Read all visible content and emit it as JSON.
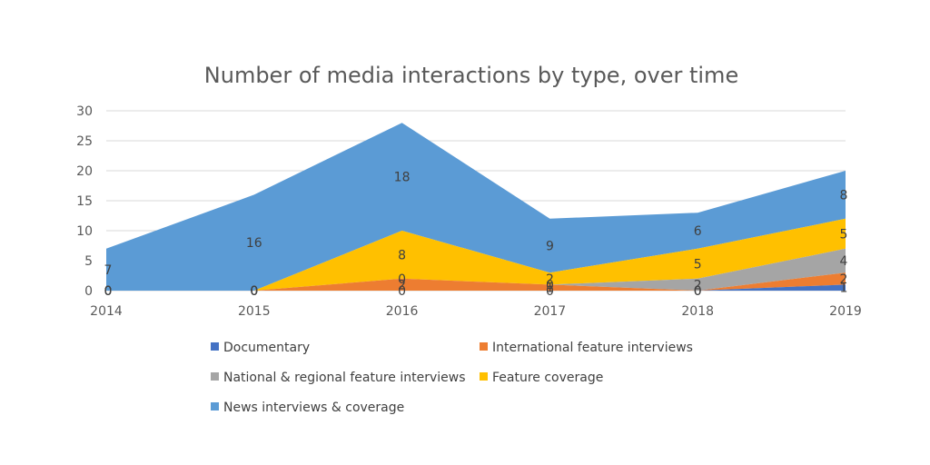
{
  "chart_data": {
    "type": "area",
    "stacked": true,
    "title": "Number of media interactions by type, over time",
    "xlabel": "",
    "ylabel": "",
    "x": [
      "2014",
      "2015",
      "2016",
      "2017",
      "2018",
      "2019"
    ],
    "ylim": [
      0,
      30
    ],
    "yticks": [
      "0",
      "5",
      "10",
      "15",
      "20",
      "25",
      "30"
    ],
    "grid": true,
    "legend_position": "bottom",
    "series": [
      {
        "name": "Documentary",
        "color": "#4472c4",
        "values": [
          0,
          0,
          0,
          0,
          0,
          1
        ]
      },
      {
        "name": "International feature interviews",
        "color": "#ed7d31",
        "values": [
          0,
          0,
          2,
          1,
          0,
          2
        ]
      },
      {
        "name": "National & regional feature interviews",
        "color": "#a5a5a5",
        "values": [
          0,
          0,
          0,
          0,
          2,
          4
        ]
      },
      {
        "name": "Feature coverage",
        "color": "#ffc000",
        "values": [
          0,
          0,
          8,
          2,
          5,
          5
        ]
      },
      {
        "name": "News interviews & coverage",
        "color": "#5b9bd5",
        "values": [
          7,
          16,
          18,
          9,
          6,
          8
        ]
      }
    ]
  }
}
